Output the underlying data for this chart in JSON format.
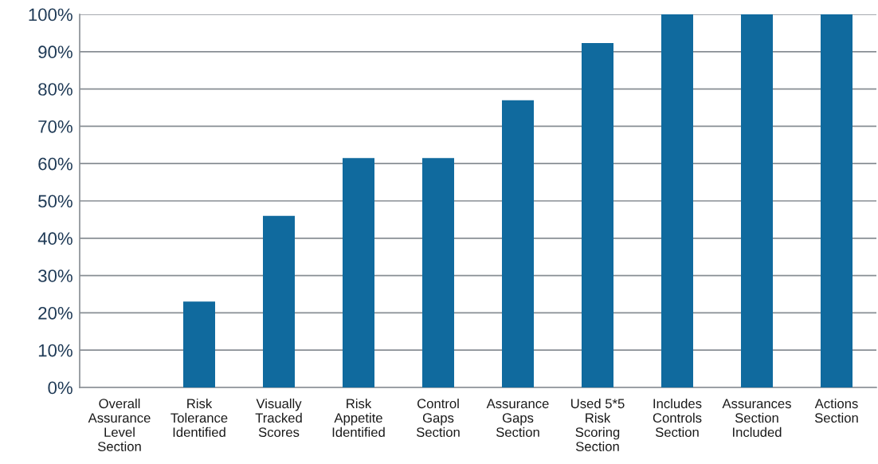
{
  "chart_data": {
    "type": "bar",
    "categories": [
      "Overall\nAssurance\nLevel\nSection",
      "Risk\nTolerance\nIdentified",
      "Visually\nTracked\nScores",
      "Risk\nAppetite\nIdentified",
      "Control\nGaps\nSection",
      "Assurance\nGaps\nSection",
      "Used 5*5\nRisk\nScoring\nSection",
      "Includes\nControls\nSection",
      "Assurances\nSection\nIncluded",
      "Actions\nSection"
    ],
    "values": [
      0,
      23,
      46,
      61.5,
      61.5,
      77,
      92.3,
      100,
      100,
      100
    ],
    "color": "#106a9e",
    "ylim": [
      0,
      100
    ],
    "yticks": [
      {
        "value": 0,
        "label": "0%"
      },
      {
        "value": 10,
        "label": "10%"
      },
      {
        "value": 20,
        "label": "20%"
      },
      {
        "value": 30,
        "label": "30%"
      },
      {
        "value": 40,
        "label": "40%"
      },
      {
        "value": 50,
        "label": "50%"
      },
      {
        "value": 60,
        "label": "60%"
      },
      {
        "value": 70,
        "label": "70%"
      },
      {
        "value": 80,
        "label": "80%"
      },
      {
        "value": 90,
        "label": "90%"
      },
      {
        "value": 100,
        "label": "100%"
      }
    ],
    "grid": "y"
  }
}
